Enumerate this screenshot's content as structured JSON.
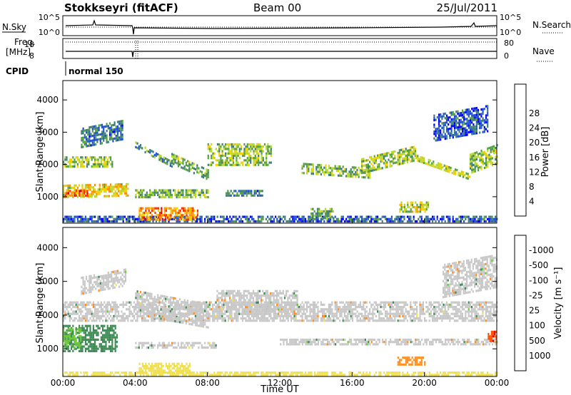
{
  "header": {
    "station": "Stokkseyri (fitACF)",
    "beam": "Beam 00",
    "date": "25/Jul/2011"
  },
  "labels": {
    "nsky": "N.Sky",
    "nsearch": "N.Search",
    "freq_line1": "Freq.",
    "freq_line2": "[MHz]",
    "nave": "Nave",
    "cpid": "CPID",
    "cpid_value": "normal 150",
    "y_axis": "Slant Range [km]",
    "x_axis": "Time UT",
    "power_bar": "Power [dB]",
    "velocity_bar": "Velocity [m s⁻¹]"
  },
  "noise_axis": {
    "top": "10^5",
    "bottom": "10^0"
  },
  "freq_axis": {
    "left_top": "18",
    "left_bottom": "8",
    "right_top": "80",
    "right_bottom": "0"
  },
  "colors": {
    "background": "#ffffff",
    "no_data": "#ffffff",
    "ground_scatter": "#c8c8c8"
  },
  "chart_data": [
    {
      "type": "heatmap",
      "title": "Power",
      "xlabel": "Time UT",
      "ylabel": "Slant Range [km]",
      "x_ticks": [
        "00:00",
        "04:00",
        "08:00",
        "12:00",
        "16:00",
        "20:00",
        "00:00"
      ],
      "x_range_hours": [
        0,
        24
      ],
      "y_ticks": [
        1000,
        2000,
        3000,
        4000
      ],
      "y_range_km": [
        180,
        4600
      ],
      "colorbar": {
        "label": "Power [dB]",
        "ticks": [
          4,
          8,
          12,
          16,
          20,
          24,
          28
        ],
        "range": [
          0,
          30
        ],
        "colors": [
          "#0000ff",
          "#1f4fd8",
          "#3f7e78",
          "#56a040",
          "#b6d82a",
          "#f2d000",
          "#ff9000",
          "#ff3000",
          "#e00000"
        ]
      },
      "bands": [
        {
          "t_start": 0.0,
          "t_end": 2.7,
          "r_start": 1900,
          "r_end": 2250,
          "dr": 0,
          "level": 14
        },
        {
          "t_start": 0.0,
          "t_end": 3.6,
          "r_start": 950,
          "r_end": 1350,
          "dr": 50,
          "level": 18
        },
        {
          "t_start": 0.1,
          "t_end": 1.4,
          "r_start": 1000,
          "r_end": 1200,
          "dr": 0,
          "level": 24
        },
        {
          "t_start": 1.0,
          "t_end": 3.3,
          "r_start": 2500,
          "r_end": 3100,
          "dr": 250,
          "level": 8
        },
        {
          "t_start": 4.0,
          "t_end": 6.0,
          "r_start": 2500,
          "r_end": 2700,
          "dr": -600,
          "level": 10
        },
        {
          "t_start": 6.0,
          "t_end": 8.0,
          "r_start": 2000,
          "r_end": 2300,
          "dr": -500,
          "level": 12
        },
        {
          "t_start": 4.0,
          "t_end": 8.0,
          "r_start": 950,
          "r_end": 1200,
          "dr": 0,
          "level": 12
        },
        {
          "t_start": 8.0,
          "t_end": 11.5,
          "r_start": 1950,
          "r_end": 2600,
          "dr": 0,
          "level": 14
        },
        {
          "t_start": 13.2,
          "t_end": 17.0,
          "r_start": 1700,
          "r_end": 2000,
          "dr": -150,
          "level": 13
        },
        {
          "t_start": 16.5,
          "t_end": 19.5,
          "r_start": 1700,
          "r_end": 2150,
          "dr": 400,
          "level": 14
        },
        {
          "t_start": 19.5,
          "t_end": 22.5,
          "r_start": 2100,
          "r_end": 2300,
          "dr": -600,
          "level": 15
        },
        {
          "t_start": 22.5,
          "t_end": 24.0,
          "r_start": 1700,
          "r_end": 2300,
          "dr": 300,
          "level": 13
        },
        {
          "t_start": 18.6,
          "t_end": 20.2,
          "r_start": 500,
          "r_end": 800,
          "dr": 0,
          "level": 16
        },
        {
          "t_start": 0.0,
          "t_end": 24.0,
          "r_start": 200,
          "r_end": 350,
          "dr": 0,
          "level": 6
        },
        {
          "t_start": 4.2,
          "t_end": 7.5,
          "r_start": 250,
          "r_end": 650,
          "dr": 0,
          "level": 22
        },
        {
          "t_start": 9.0,
          "t_end": 11.0,
          "r_start": 1000,
          "r_end": 1200,
          "dr": 0,
          "level": 8
        },
        {
          "t_start": 13.7,
          "t_end": 15.0,
          "r_start": 300,
          "r_end": 600,
          "dr": 0,
          "level": 12
        },
        {
          "t_start": 20.5,
          "t_end": 23.5,
          "r_start": 2700,
          "r_end": 3500,
          "dr": 300,
          "level": 6
        }
      ]
    },
    {
      "type": "heatmap",
      "title": "Velocity",
      "xlabel": "Time UT",
      "ylabel": "Slant Range [km]",
      "x_ticks": [
        "00:00",
        "04:00",
        "08:00",
        "12:00",
        "16:00",
        "20:00",
        "00:00"
      ],
      "x_range_hours": [
        0,
        24
      ],
      "y_ticks": [
        1000,
        2000,
        3000,
        4000
      ],
      "y_range_km": [
        180,
        4600
      ],
      "colorbar": {
        "label": "Velocity [m s⁻¹]",
        "ticks": [
          "1000",
          "500",
          "100",
          "25",
          "-25",
          "-100",
          "-500",
          "-1000"
        ],
        "colors": [
          "#2030c0",
          "#3070b0",
          "#3e8a55",
          "#6cc83a",
          "#c8c8c8",
          "#f0e050",
          "#ff9020",
          "#ff5000",
          "#e00000"
        ]
      },
      "bands": [
        {
          "t_start": 0.0,
          "t_end": 24.0,
          "r_start": 1800,
          "r_end": 2350,
          "dr": 0,
          "v": 0
        },
        {
          "t_start": 1.0,
          "t_end": 3.5,
          "r_start": 2600,
          "r_end": 3100,
          "dr": 250,
          "v": 0
        },
        {
          "t_start": 4.0,
          "t_end": 8.0,
          "r_start": 2000,
          "r_end": 2700,
          "dr": -400,
          "v": 0
        },
        {
          "t_start": 0.0,
          "t_end": 3.0,
          "r_start": 900,
          "r_end": 1700,
          "dr": 0,
          "v": 250
        },
        {
          "t_start": 0.0,
          "t_end": 1.0,
          "r_start": 1000,
          "r_end": 1600,
          "dr": 0,
          "v": 80
        },
        {
          "t_start": 4.0,
          "t_end": 8.5,
          "r_start": 1000,
          "r_end": 1200,
          "dr": 0,
          "v": 0
        },
        {
          "t_start": 8.5,
          "t_end": 13.0,
          "r_start": 2000,
          "r_end": 2700,
          "dr": 0,
          "v": 0
        },
        {
          "t_start": 12.0,
          "t_end": 24.0,
          "r_start": 1100,
          "r_end": 1300,
          "dr": 0,
          "v": 0
        },
        {
          "t_start": 21.0,
          "t_end": 24.0,
          "r_start": 2500,
          "r_end": 3500,
          "dr": 300,
          "v": 0
        },
        {
          "t_start": 4.2,
          "t_end": 7.0,
          "r_start": 250,
          "r_end": 550,
          "dr": 0,
          "v": -60
        },
        {
          "t_start": 18.5,
          "t_end": 20.0,
          "r_start": 500,
          "r_end": 750,
          "dr": 0,
          "v": -300
        },
        {
          "t_start": 0.0,
          "t_end": 24.0,
          "r_start": 190,
          "r_end": 320,
          "dr": 0,
          "v": -60
        },
        {
          "t_start": 23.5,
          "t_end": 24.0,
          "r_start": 1200,
          "r_end": 1500,
          "dr": 0,
          "v": -800
        }
      ]
    }
  ]
}
